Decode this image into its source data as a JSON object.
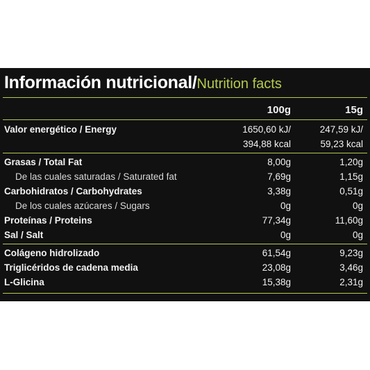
{
  "title": {
    "spanish": "Información nutricional/",
    "english": "Nutrition facts"
  },
  "columns": {
    "col1": "100g",
    "col2": "15g"
  },
  "energy": {
    "label": "Valor energético / Energy",
    "kj_100g": "1650,60 kJ/",
    "kj_15g": "247,59 kJ/",
    "kcal_100g": "394,88 kcal",
    "kcal_15g": "59,23 kcal"
  },
  "rows": [
    {
      "label": "Grasas / Total Fat",
      "v100": "8,00g",
      "v15": "1,20g"
    },
    {
      "label": "De las cuales saturadas / Saturated fat",
      "v100": "7,69g",
      "v15": "1,15g"
    },
    {
      "label": "Carbohidratos / Carbohydrates",
      "v100": "3,38g",
      "v15": "0,51g"
    },
    {
      "label": "De los cuales azúcares / Sugars",
      "v100": "0g",
      "v15": "0g"
    },
    {
      "label": "Proteínas / Proteins",
      "v100": "77,34g",
      "v15": "11,60g"
    },
    {
      "label": "Sal / Salt",
      "v100": "0g",
      "v15": "0g"
    },
    {
      "label": "Colágeno hidrolizado",
      "v100": "61,54g",
      "v15": "9,23g"
    },
    {
      "label": "Triglicéridos de cadena media",
      "v100": "23,08g",
      "v15": "3,46g"
    },
    {
      "label": "L-Glicina",
      "v100": "15,38g",
      "v15": "2,31g"
    }
  ],
  "colors": {
    "background": "#111111",
    "accent": "#b7c94e",
    "text": "#f2f2f2"
  }
}
